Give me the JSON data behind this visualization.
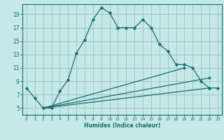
{
  "title": "",
  "xlabel": "Humidex (Indice chaleur)",
  "background_color": "#c5e8e8",
  "grid_color": "#a0c8c8",
  "line_color": "#1a6e6e",
  "xlim": [
    -0.5,
    23.5
  ],
  "ylim": [
    4.0,
    20.5
  ],
  "yticks": [
    5,
    7,
    9,
    11,
    13,
    15,
    17,
    19
  ],
  "xticks": [
    0,
    1,
    2,
    3,
    4,
    5,
    6,
    7,
    8,
    9,
    10,
    11,
    12,
    13,
    14,
    15,
    16,
    17,
    18,
    19,
    20,
    21,
    22,
    23
  ],
  "line1_x": [
    0,
    1,
    2,
    3,
    4,
    5,
    6,
    7,
    8,
    9,
    10,
    11,
    12,
    13,
    14,
    15,
    16,
    17,
    18,
    19,
    20,
    21,
    22,
    23
  ],
  "line1_y": [
    8.0,
    6.5,
    5.0,
    5.0,
    7.5,
    9.2,
    13.2,
    15.2,
    18.2,
    20.0,
    19.2,
    17.0,
    17.0,
    17.0,
    18.2,
    17.0,
    14.5,
    13.5,
    11.5,
    11.5,
    11.0,
    9.0,
    8.0,
    8.0
  ],
  "line2_x": [
    2,
    19
  ],
  "line2_y": [
    5.0,
    11.0
  ],
  "line3_x": [
    2,
    22
  ],
  "line3_y": [
    5.0,
    8.0
  ],
  "line4_x": [
    2,
    22
  ],
  "line4_y": [
    5.0,
    9.5
  ]
}
